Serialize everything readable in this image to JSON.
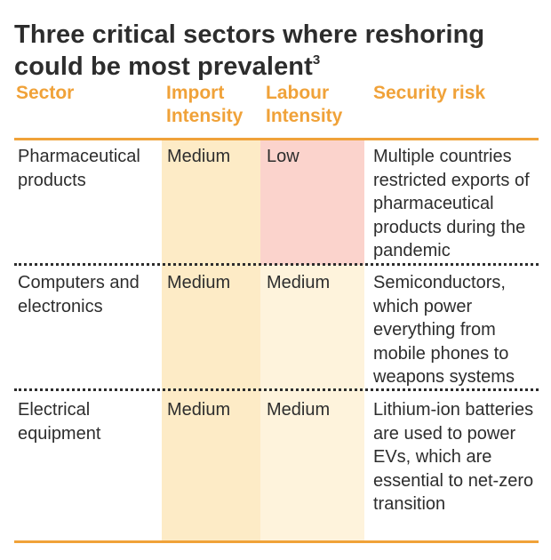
{
  "title": {
    "text": "Three critical sectors where reshoring could be most prevalent",
    "footnote": "3"
  },
  "table": {
    "headers": {
      "sector": "Sector",
      "import_intensity": "Import Intensity",
      "labour_intensity": "Labour Intensity",
      "security_risk": "Security risk"
    },
    "rows": [
      {
        "sector": "Pharmaceutical products",
        "import_intensity": "Medium",
        "labour_intensity": "Low",
        "security_risk": "Multiple countries restricted exports of pharmaceutical products during the pandemic"
      },
      {
        "sector": "Computers and electronics",
        "import_intensity": "Medium",
        "labour_intensity": "Medium",
        "security_risk": "Semiconductors, which power everything from mobile phones to weapons systems"
      },
      {
        "sector": "Electrical equipment",
        "import_intensity": "Medium",
        "labour_intensity": "Medium",
        "security_risk": "Lithium-ion batteries are used to power EVs, which are essential to net-zero transition"
      }
    ]
  },
  "colors": {
    "accent": "#f0a239",
    "text": "#2d2d2d",
    "import_shade": "#fdebc6",
    "labour_low_shade": "#fbd3cc",
    "labour_medium_shade": "#fef3dc"
  }
}
